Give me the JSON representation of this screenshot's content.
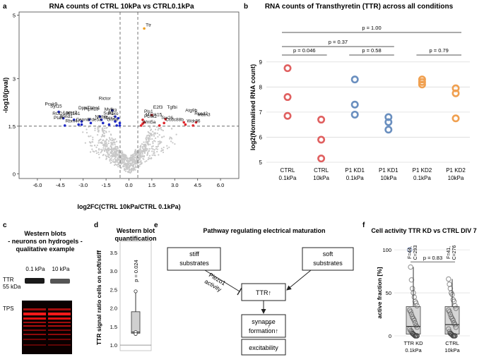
{
  "panel_letters": [
    "a",
    "b",
    "c",
    "d",
    "e",
    "f"
  ],
  "chart_data": [
    {
      "panel": "a",
      "type": "scatter",
      "title": "RNA counts of CTRL 10kPa vs CTRL0.1kPa",
      "xlabel": "log2FC(CTRL 10kPa/CTRL 0.1kPa)",
      "ylabel": "-log10(pval)",
      "xlim": [
        -7.2,
        7.2
      ],
      "ylim": [
        -0.15,
        5.1
      ],
      "x_ticks": [
        "-6.0",
        "-4.5",
        "-3.0",
        "-1.5",
        "0.0",
        "1.5",
        "3.0",
        "4.5",
        "6.0"
      ],
      "x_tick_values": [
        -6,
        -4.5,
        -3,
        -1.5,
        0,
        1.5,
        3,
        4.5,
        6
      ],
      "y_ticks": [
        "0",
        "1.5",
        "3",
        "5"
      ],
      "y_tick_values": [
        0,
        1.5,
        3,
        5
      ],
      "threshold_y": 1.5,
      "threshold_x": [
        -0.58,
        0.58
      ],
      "colors": {
        "down": "#1f2ac8",
        "up": "#e0282e",
        "highlight": "#f0a020",
        "ns": "#c8c8c8"
      },
      "labeled_genes": [
        {
          "gene": "Ttr",
          "x": 1.0,
          "y": 4.58,
          "group": "highlight"
        },
        {
          "gene": "Pcsk9",
          "x": -4.6,
          "y": 1.95,
          "group": "down"
        },
        {
          "gene": "Syt15",
          "x": -4.3,
          "y": 1.75,
          "group": "down"
        },
        {
          "gene": "Itpnd1",
          "x": -3.6,
          "y": 1.7,
          "group": "down"
        },
        {
          "gene": "RGD1561161",
          "x": -3.1,
          "y": 1.65,
          "group": "down"
        },
        {
          "gene": "Lamc2",
          "x": -3.3,
          "y": 1.55,
          "group": "down"
        },
        {
          "gene": "Rbm47",
          "x": -3.1,
          "y": 1.55,
          "group": "down"
        },
        {
          "gene": "Ptafr",
          "x": -4.2,
          "y": 1.52,
          "group": "down"
        },
        {
          "gene": "Dptc",
          "x": -2.6,
          "y": 1.7,
          "group": "down"
        },
        {
          "gene": "Capn8",
          "x": -2.5,
          "y": 1.6,
          "group": "down"
        },
        {
          "gene": "Ptpn13",
          "x": -1.9,
          "y": 1.8,
          "group": "down"
        },
        {
          "gene": "Thbs1",
          "x": -1.8,
          "y": 1.7,
          "group": "down"
        },
        {
          "gene": "Pde5a",
          "x": -1.7,
          "y": 1.6,
          "group": "down"
        },
        {
          "gene": "Nfkbiz",
          "x": -1.3,
          "y": 1.55,
          "group": "down"
        },
        {
          "gene": "Rictor",
          "x": -1.1,
          "y": 2.0,
          "group": "down"
        },
        {
          "gene": "Sulf1",
          "x": -0.9,
          "y": 1.8,
          "group": "down"
        },
        {
          "gene": "Id3",
          "x": -0.7,
          "y": 1.75,
          "group": "down"
        },
        {
          "gene": "Mylk",
          "x": -0.9,
          "y": 1.65,
          "group": "down"
        },
        {
          "gene": "Grm8",
          "x": -0.6,
          "y": 1.6,
          "group": "down"
        },
        {
          "gene": "Stox2",
          "x": -0.8,
          "y": 1.52,
          "group": "down"
        },
        {
          "gene": "Foxo",
          "x": -0.6,
          "y": 1.52,
          "group": "down"
        },
        {
          "gene": "Pcnx2",
          "x": 0.9,
          "y": 1.7,
          "group": "up"
        },
        {
          "gene": "Mapk15",
          "x": 1.0,
          "y": 1.62,
          "group": "up"
        },
        {
          "gene": "Pls1",
          "x": 0.9,
          "y": 1.58,
          "group": "up"
        },
        {
          "gene": "Wnt5a",
          "x": 0.8,
          "y": 1.52,
          "group": "up"
        },
        {
          "gene": "E2f3",
          "x": 1.5,
          "y": 1.85,
          "group": "up"
        },
        {
          "gene": "Tgfbi",
          "x": 2.4,
          "y": 1.72,
          "group": "up"
        },
        {
          "gene": "Ccdc88b",
          "x": 2.3,
          "y": 1.6,
          "group": "up"
        },
        {
          "gene": "Tex26",
          "x": 2.0,
          "y": 1.52,
          "group": "up"
        },
        {
          "gene": "Atg9b",
          "x": 3.6,
          "y": 1.62,
          "group": "up"
        },
        {
          "gene": "Wdr86",
          "x": 3.7,
          "y": 1.55,
          "group": "up"
        },
        {
          "gene": "Matn3",
          "x": 4.4,
          "y": 1.62,
          "group": "up"
        },
        {
          "gene": "Rsad2",
          "x": 4.2,
          "y": 1.52,
          "group": "up"
        }
      ]
    },
    {
      "panel": "b",
      "type": "scatter",
      "title": "RNA counts of Transthyretin (TTR) across all conditions",
      "xlabel": "",
      "ylabel": "log2(Normalised RNA count)",
      "ylim": [
        5,
        9.5
      ],
      "y_ticks": [
        "5",
        "6",
        "7",
        "8",
        "9"
      ],
      "y_tick_values": [
        5,
        6,
        7,
        8,
        9
      ],
      "categories": [
        "CTRL\n0.1kPa",
        "CTRL\n10kPa",
        "P1 KD1\n0.1kPa",
        "P1 KD1\n10kPa",
        "P1 KD2\n0.1kPa",
        "P1 KD2\n10kPa"
      ],
      "series": [
        {
          "category_index": 0,
          "values": [
            8.75,
            7.6,
            6.85
          ],
          "color": "#e06060"
        },
        {
          "category_index": 1,
          "values": [
            6.7,
            5.9,
            5.15
          ],
          "color": "#e06060"
        },
        {
          "category_index": 2,
          "values": [
            8.3,
            7.3,
            6.9
          ],
          "color": "#6a8fbf"
        },
        {
          "category_index": 3,
          "values": [
            6.8,
            6.6,
            6.3
          ],
          "color": "#6a8fbf"
        },
        {
          "category_index": 4,
          "values": [
            8.3,
            8.2,
            8.1
          ],
          "color": "#f0a050"
        },
        {
          "category_index": 5,
          "values": [
            7.95,
            7.75,
            6.75
          ],
          "color": "#f0a050"
        }
      ],
      "comparisons": [
        {
          "from": 0,
          "to": 1,
          "label": "p = 0.046",
          "level": 1
        },
        {
          "from": 2,
          "to": 3,
          "label": "p = 0.58",
          "level": 1
        },
        {
          "from": 4,
          "to": 5,
          "label": "p = 0.79",
          "level": 1
        },
        {
          "from": 0,
          "to": 3,
          "label": "p = 0.37",
          "level": 2
        },
        {
          "from": 0,
          "to": 5,
          "label": "p = 1.00",
          "level": 3
        }
      ]
    },
    {
      "panel": "d",
      "type": "box",
      "title": "Western blot\nquantification",
      "ylabel": "TTR signal ratio cells on soft/stiff",
      "ylim": [
        0.85,
        3.8
      ],
      "y_ticks": [
        "1.0",
        "1.5",
        "2.0",
        "2.5",
        "3.0",
        "3.5"
      ],
      "y_tick_values": [
        1.0,
        1.5,
        2.0,
        2.5,
        3.0,
        3.5
      ],
      "reference_line": 1.0,
      "values": [
        2.45,
        1.35,
        1.3
      ],
      "box": {
        "q1": 1.32,
        "median": 1.35,
        "q3": 1.9,
        "whisker_low": 1.3,
        "whisker_high": 2.45
      },
      "annotation": "p = 0.024"
    },
    {
      "panel": "f",
      "type": "box",
      "title": "Cell activity TTR KD vs CTRL DIV 7",
      "ylabel": "active fraction [%]",
      "ylim": [
        0,
        105
      ],
      "y_ticks": [
        "0",
        "50",
        "100"
      ],
      "y_tick_values": [
        0,
        50,
        100
      ],
      "categories": [
        "TTR KD\n0.1kPa",
        "CTRL\n10kPa"
      ],
      "counts": [
        "F=44,\nC=293",
        "F=41,\nC=276"
      ],
      "comparison": "p = 0.83",
      "groups": [
        {
          "box": {
            "q1": 2,
            "median": 11,
            "q3": 34,
            "whisker_low": 0,
            "whisker_high": 80
          },
          "values": [
            100,
            80,
            65,
            55,
            50,
            45,
            40,
            38,
            35,
            30,
            28,
            25,
            22,
            20,
            18,
            15,
            12,
            10,
            8,
            6,
            5,
            3,
            2,
            1,
            0,
            0,
            0
          ]
        },
        {
          "box": {
            "q1": 2,
            "median": 13,
            "q3": 34,
            "whisker_low": 0,
            "whisker_high": 66
          },
          "values": [
            66,
            60,
            55,
            50,
            48,
            42,
            40,
            35,
            32,
            30,
            28,
            25,
            22,
            20,
            18,
            15,
            13,
            10,
            8,
            5,
            3,
            2,
            1,
            0,
            0,
            0
          ]
        }
      ]
    }
  ],
  "panel_c": {
    "title_lines": [
      "Western blots",
      "- neurons on hydrogels -",
      "qualitative example"
    ],
    "lane_labels": [
      "0.1 kPa",
      "10 kPa"
    ],
    "row_label_lines": [
      "TTR",
      "55 kDa"
    ],
    "tps_label": "TPS"
  },
  "panel_e": {
    "title": "Pathway regulating electrical maturation",
    "nodes": {
      "stiff": [
        "stiff",
        "substrates"
      ],
      "soft": [
        "soft",
        "substrates"
      ],
      "ttr": "TTR↑",
      "synapse": [
        "synapse",
        "formation↑"
      ],
      "excitability": "excitability"
    },
    "edge_labels": {
      "piezo_lines": [
        "Piezo1",
        "activity"
      ],
      "question": "?"
    }
  }
}
